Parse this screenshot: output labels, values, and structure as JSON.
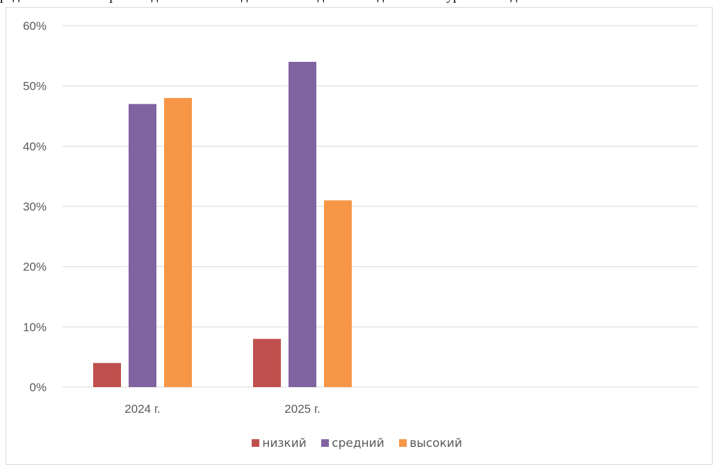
{
  "chart_data": {
    "type": "bar",
    "title": "",
    "xlabel": "",
    "ylabel": "",
    "categories": [
      "2024 г.",
      "2025 г."
    ],
    "series": [
      {
        "name": "низкий",
        "values": [
          4,
          8
        ],
        "color": "#c0504d"
      },
      {
        "name": "средний",
        "values": [
          47,
          54
        ],
        "color": "#8064a2"
      },
      {
        "name": "высокий",
        "values": [
          48,
          31
        ],
        "color": "#f79646"
      }
    ],
    "ylim": [
      0,
      60
    ],
    "yticks": [
      "0%",
      "10%",
      "20%",
      "30%",
      "40%",
      "50%",
      "60%"
    ],
    "grid": true,
    "legend_position": "bottom"
  }
}
